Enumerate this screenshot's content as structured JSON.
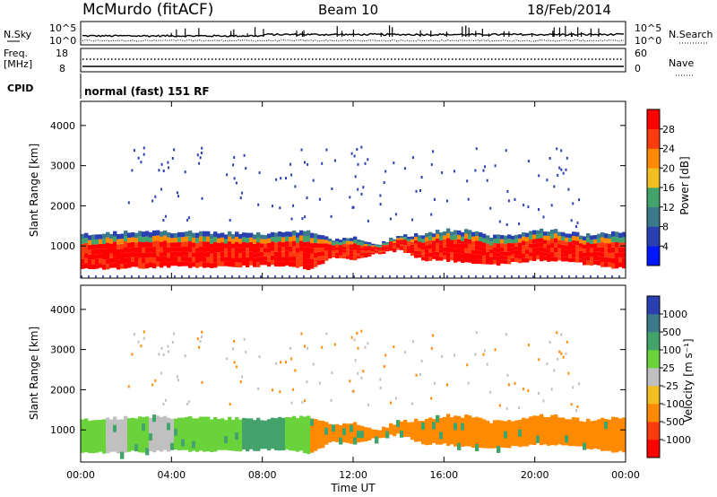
{
  "header": {
    "station": "McMurdo (fitACF)",
    "beam": "Beam 10",
    "date": "18/Feb/2014"
  },
  "noise_panel": {
    "left_label": "N.Sky",
    "left_ticks": [
      "10^5",
      "10^0"
    ],
    "right_label": "N.Search",
    "right_ticks": [
      "10^5",
      "10^0"
    ]
  },
  "freq_panel": {
    "left_label": "Freq.",
    "left_unit": "[MHz]",
    "left_ticks": [
      "18",
      "8"
    ],
    "right_label": "Nave",
    "right_ticks": [
      "60",
      "0"
    ]
  },
  "cpid": {
    "label": "CPID",
    "value": "normal (fast) 151 RF"
  },
  "colors": {
    "power": [
      "#0018ff",
      "#2a3fb0",
      "#3b7a8a",
      "#44a36a",
      "#f0c020",
      "#ff8a00",
      "#ff3b10",
      "#ff0000"
    ],
    "velocity": [
      "#ff0000",
      "#ff3b10",
      "#ff8a00",
      "#f0c020",
      "#c0c0c0",
      "#6ad23a",
      "#44a36a",
      "#3b7a8a",
      "#2a3fb0"
    ]
  },
  "chart_data": [
    {
      "type": "heatmap",
      "parameter": "Power",
      "ylabel": "Slant Range [km]",
      "ylim": [
        200,
        4600
      ],
      "yticks": [
        "1000",
        "2000",
        "3000",
        "4000"
      ],
      "xlim": [
        "00:00",
        "24:00"
      ],
      "colorbar_label": "Power [dB]",
      "colorbar_ticks": [
        "4",
        "8",
        "12",
        "16",
        "20",
        "24",
        "28"
      ],
      "colorbar_range": [
        0,
        32
      ],
      "description": "Strong echoes 500-1300 km",
      "band_ranges_km": {
        "hours": [
          0,
          2,
          4,
          6,
          8,
          9,
          10,
          11,
          12,
          13,
          14,
          15,
          16,
          17,
          18,
          19,
          20,
          21,
          22,
          23,
          24
        ],
        "lower": [
          420,
          450,
          480,
          470,
          500,
          520,
          420,
          700,
          650,
          800,
          900,
          650,
          640,
          560,
          520,
          580,
          650,
          620,
          560,
          470,
          450
        ],
        "upper": [
          1300,
          1350,
          1350,
          1330,
          1300,
          1350,
          1380,
          1150,
          1200,
          1050,
          1250,
          1300,
          1400,
          1380,
          1250,
          1300,
          1400,
          1380,
          1280,
          1330,
          1350
        ]
      }
    },
    {
      "type": "heatmap",
      "parameter": "Velocity",
      "ylabel": "Slant Range [km]",
      "ylim": [
        200,
        4600
      ],
      "yticks": [
        "1000",
        "2000",
        "3000",
        "4000"
      ],
      "xlim": [
        "00:00",
        "24:00"
      ],
      "xticks": [
        "00:00",
        "04:00",
        "08:00",
        "12:00",
        "16:00",
        "20:00",
        "00:00"
      ],
      "xlabel": "Time UT",
      "colorbar_label": "Velocity [m s⁻¹]",
      "colorbar_ticks": [
        "1000",
        "500",
        "100",
        "25",
        "-25",
        "-100",
        "-500",
        "-1000"
      ],
      "hour_regimes": {
        "hours": [
          0,
          1,
          2,
          3,
          4,
          5,
          6,
          7,
          8,
          9,
          10,
          11,
          12,
          13,
          14,
          15,
          16,
          17,
          18,
          19,
          20,
          21,
          22,
          23
        ],
        "dominant": [
          "green",
          "grey",
          "green",
          "grey",
          "green",
          "green",
          "green",
          "darkgreen",
          "darkgreen",
          "green",
          "orange",
          "orange",
          "orange",
          "orange",
          "orange",
          "orange",
          "orange",
          "orange",
          "orange",
          "orange",
          "orange",
          "orange",
          "orange",
          "orange"
        ]
      }
    }
  ]
}
